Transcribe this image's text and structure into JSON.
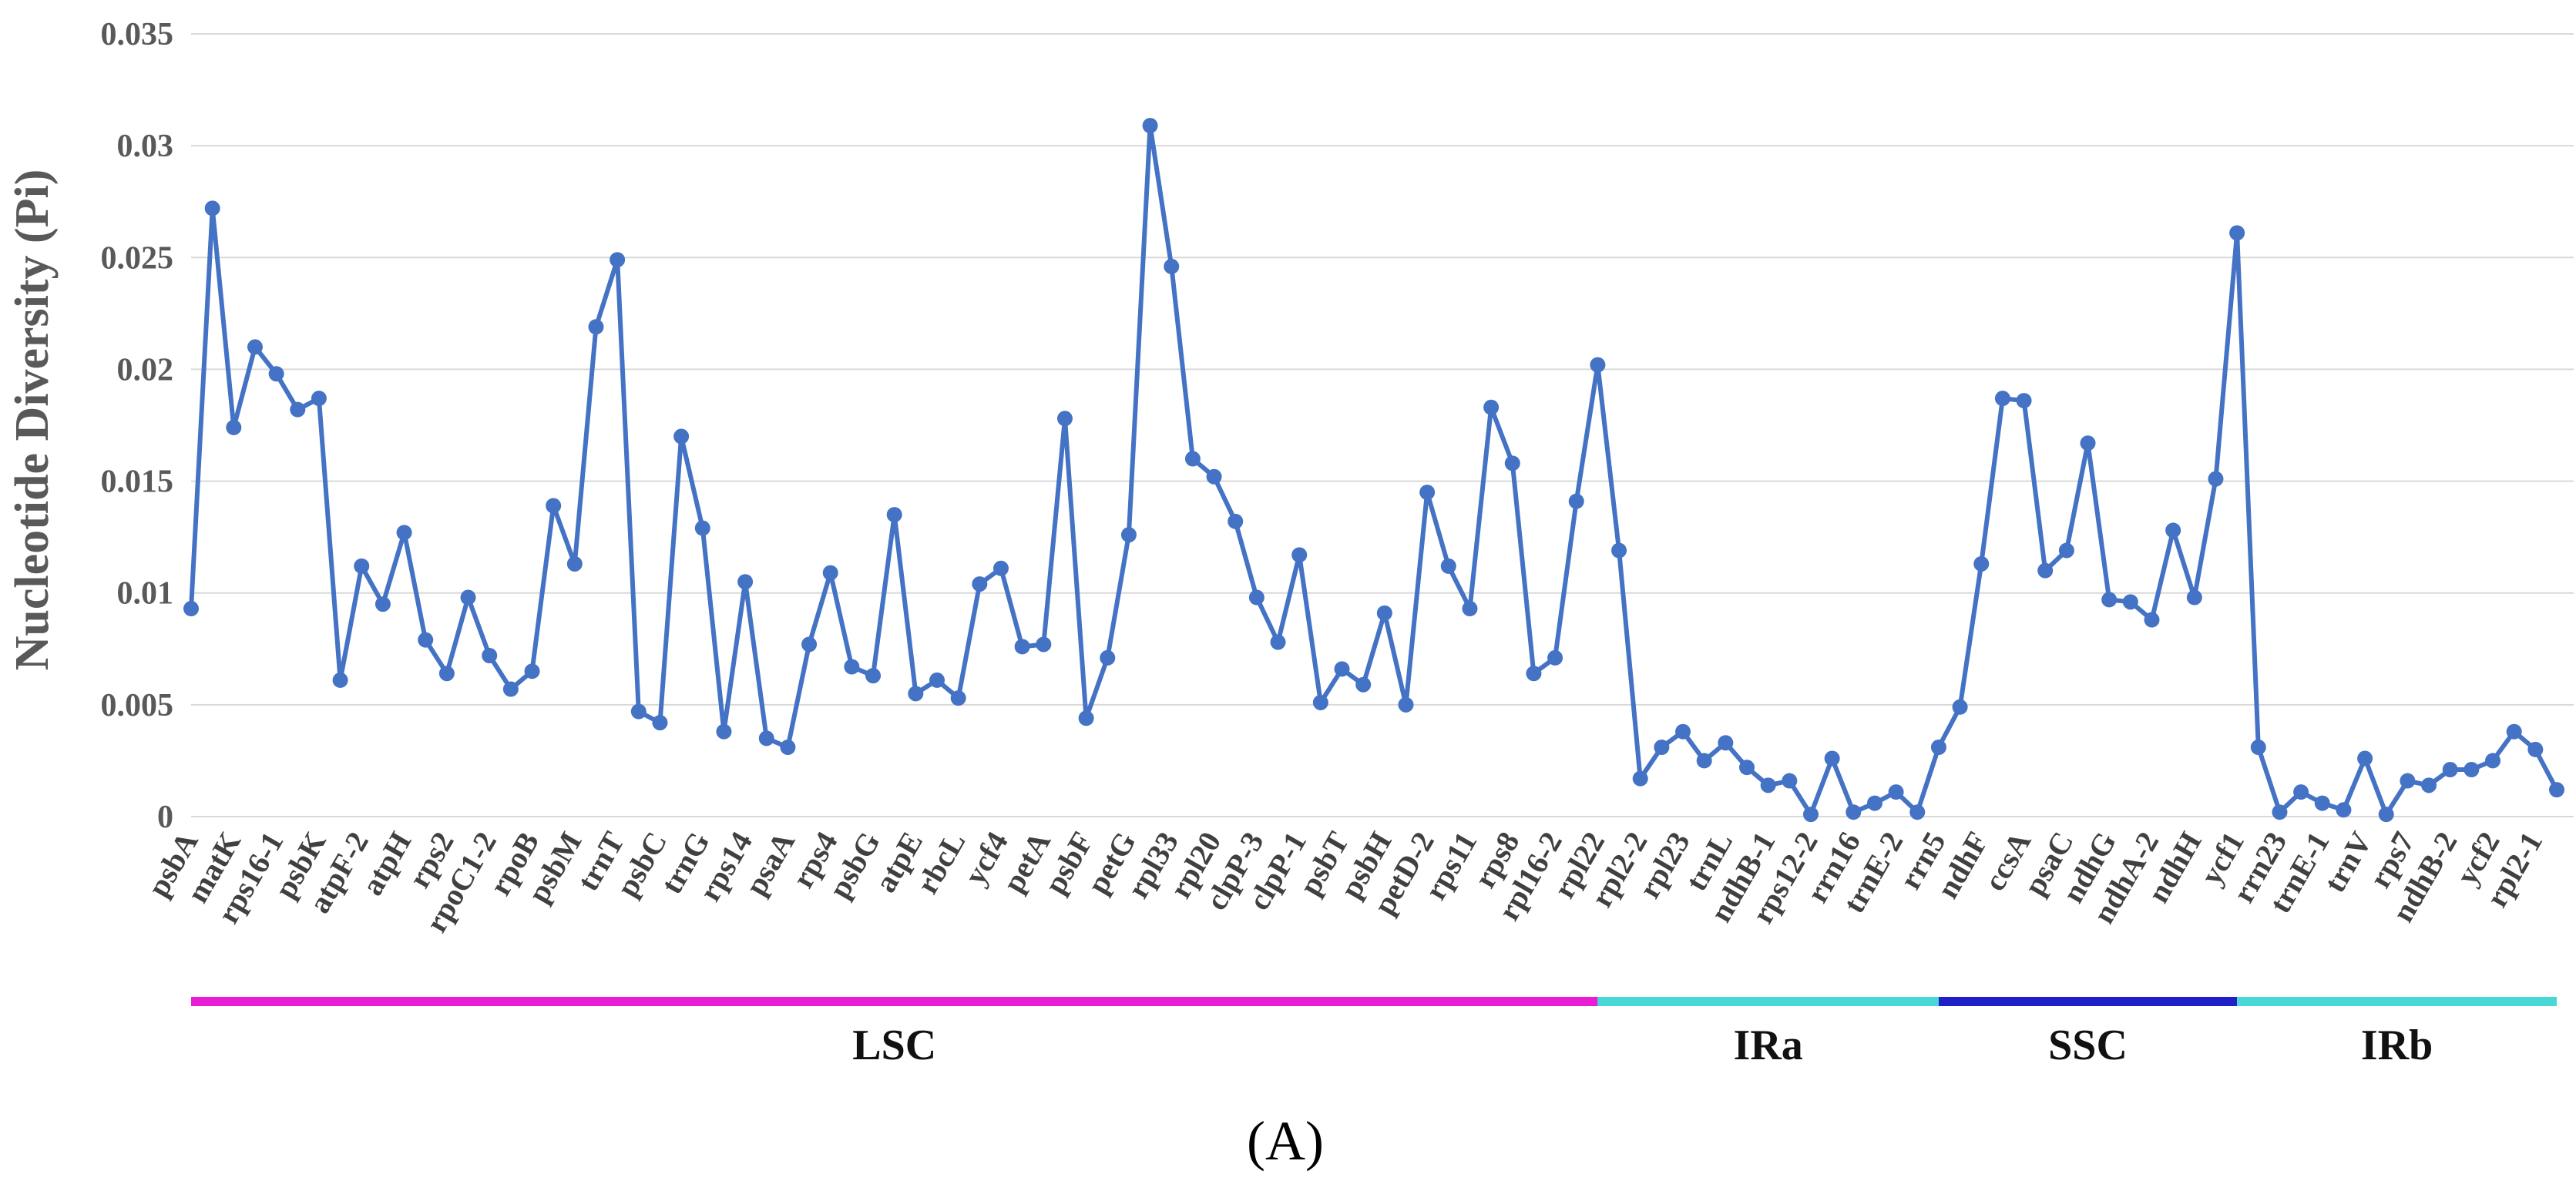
{
  "chart_data": {
    "type": "line",
    "title": "",
    "xlabel": "",
    "ylabel": "Nucleotide Diversity (Pi)",
    "ylim": [
      0,
      0.035
    ],
    "yticks": [
      "0",
      "0.005",
      "0.01",
      "0.015",
      "0.02",
      "0.025",
      "0.03",
      "0.035"
    ],
    "grid": true,
    "series_color": "#4472C4",
    "x_labels": [
      "psbA",
      "matK",
      "rps16-1",
      "psbK",
      "atpF-2",
      "atpH",
      "rps2",
      "rpoC1-2",
      "rpoB",
      "psbM",
      "trnT",
      "psbC",
      "trnG",
      "rps14",
      "psaA",
      "rps4",
      "psbG",
      "atpE",
      "rbcL",
      "ycf4",
      "petA",
      "psbF",
      "petG",
      "rpl33",
      "rpl20",
      "clpP-3",
      "clpP-1",
      "psbT",
      "psbH",
      "petD-2",
      "rps11",
      "rps8",
      "rpl16-2",
      "rpl22",
      "rpl2-2",
      "rpl23",
      "trnL",
      "ndhB-1",
      "rps12-2",
      "rrn16",
      "trnE-2",
      "rrn5",
      "ndhF",
      "ccsA",
      "psaC",
      "ndhG",
      "ndhA-2",
      "ndhH",
      "ycf1",
      "rrn23",
      "trnE-1",
      "trnV",
      "rps7",
      "ndhB-2",
      "ycf2",
      "rpl2-1"
    ],
    "values": [
      0.0093,
      0.0272,
      0.0174,
      0.021,
      0.0198,
      0.0182,
      0.0187,
      0.0061,
      0.0112,
      0.0095,
      0.0127,
      0.0079,
      0.0064,
      0.0098,
      0.0072,
      0.0057,
      0.0065,
      0.0139,
      0.0113,
      0.0219,
      0.0249,
      0.0047,
      0.0042,
      0.017,
      0.0129,
      0.0038,
      0.0105,
      0.0035,
      0.0031,
      0.0077,
      0.0109,
      0.0067,
      0.0063,
      0.0135,
      0.0055,
      0.0061,
      0.0053,
      0.0104,
      0.0111,
      0.0076,
      0.0077,
      0.0178,
      0.0044,
      0.0071,
      0.0126,
      0.0309,
      0.0246,
      0.016,
      0.0152,
      0.0132,
      0.0098,
      0.0078,
      0.0117,
      0.0051,
      0.0066,
      0.0059,
      0.0091,
      0.005,
      0.0145,
      0.0112,
      0.0093,
      0.0183,
      0.0158,
      0.0064,
      0.0071,
      0.0141,
      0.0202,
      0.0119,
      0.0017,
      0.0031,
      0.0038,
      0.0025,
      0.0033,
      0.0022,
      0.0014,
      0.0016,
      0.0001,
      0.0026,
      0.0002,
      0.0006,
      0.0011,
      0.0002,
      0.0031,
      0.0049,
      0.0113,
      0.0187,
      0.0186,
      0.011,
      0.0119,
      0.0167,
      0.0097,
      0.0096,
      0.0088,
      0.0128,
      0.0098,
      0.0151,
      0.0261,
      0.0031,
      0.0002,
      0.0011,
      0.0006,
      0.0003,
      0.0026,
      0.0001,
      0.0016,
      0.0014,
      0.0021,
      0.0021,
      0.0025,
      0.0038,
      0.003,
      0.0012
    ],
    "regions": [
      {
        "name": "LSC",
        "start_point": 0,
        "end_point": 66,
        "color": "#E91ED4"
      },
      {
        "name": "IRa",
        "start_point": 66,
        "end_point": 82,
        "color": "#48D9D6"
      },
      {
        "name": "SSC",
        "start_point": 82,
        "end_point": 96,
        "color": "#2020C8"
      },
      {
        "name": "IRb",
        "start_point": 96,
        "end_point": 111,
        "color": "#48D9D6"
      }
    ],
    "panel_label": "(A)"
  }
}
